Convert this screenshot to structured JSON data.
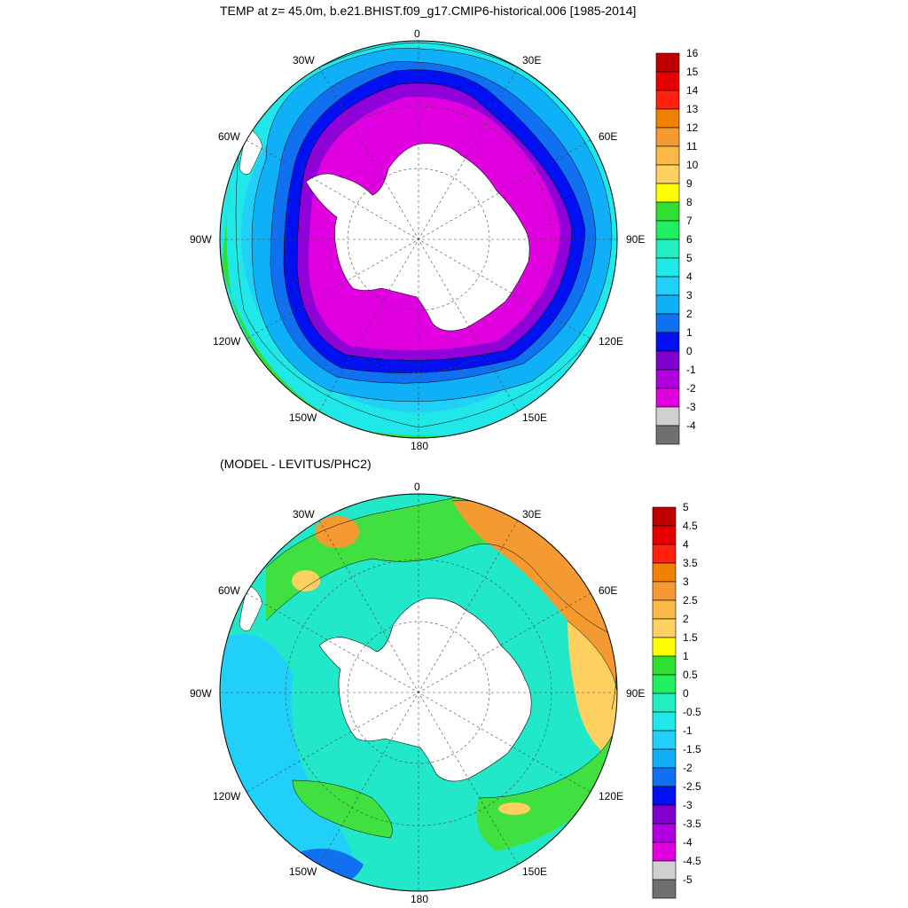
{
  "panels": [
    {
      "id": "top",
      "title": "TEMP at z=  45.0m, b.e21.BHIST.f09_g17.CMIP6-historical.006 [1985-2014]",
      "lon_labels": [
        "0",
        "30E",
        "60E",
        "90E",
        "120E",
        "150E",
        "180",
        "150W",
        "120W",
        "90W",
        "60W",
        "30W"
      ],
      "colorbar": {
        "levels": [
          "16",
          "15",
          "14",
          "13",
          "12",
          "11",
          "10",
          "9",
          "8",
          "7",
          "6",
          "5",
          "4",
          "3",
          "2",
          "1",
          "0",
          "-1",
          "-2",
          "-3",
          "-4"
        ],
        "colors": [
          "#bf0000",
          "#e60000",
          "#ff2010",
          "#f08000",
          "#f59a30",
          "#fbb848",
          "#fdd060",
          "#ffff00",
          "#30e030",
          "#20f060",
          "#20f0c0",
          "#20e8e8",
          "#20d0f8",
          "#10b0f8",
          "#1070f0",
          "#0010f0",
          "#8000d0",
          "#b000e0",
          "#e000e0",
          "#d0d0d0",
          "#707070"
        ]
      },
      "regions": {
        "outer": "#30e8e0",
        "mid": "#20c0f0",
        "inner_blue": "#1070f0",
        "dark_blue": "#0010f0",
        "purple": "#9000d8",
        "magenta": "#e000e0",
        "land": "#ffffff",
        "warm_edge": "#40e040"
      }
    },
    {
      "id": "bottom",
      "title": "(MODEL - LEVITUS/PHC2)",
      "lon_labels": [
        "0",
        "30E",
        "60E",
        "90E",
        "120E",
        "150E",
        "180",
        "150W",
        "120W",
        "90W",
        "60W",
        "30W"
      ],
      "colorbar": {
        "levels": [
          "5",
          "4.5",
          "4",
          "3.5",
          "3",
          "2.5",
          "2",
          "1.5",
          "1",
          "0.5",
          "0",
          "-0.5",
          "-1",
          "-1.5",
          "-2",
          "-2.5",
          "-3",
          "-3.5",
          "-4",
          "-4.5",
          "-5"
        ],
        "colors": [
          "#bf0000",
          "#e60000",
          "#ff2010",
          "#f08000",
          "#f59a30",
          "#fbb848",
          "#fdd060",
          "#ffff00",
          "#30e030",
          "#20f060",
          "#20f0c0",
          "#20e8e8",
          "#20d0f8",
          "#10b0f8",
          "#1070f0",
          "#0010f0",
          "#8000d0",
          "#b000e0",
          "#e000e0",
          "#d0d0d0",
          "#707070"
        ]
      },
      "regions": {
        "base": "#20e8c8",
        "cool": "#20d0f8",
        "green": "#40e040",
        "orange": "#f59a30",
        "yellow": "#fdd060",
        "blue": "#1070f0",
        "land": "#ffffff"
      }
    }
  ]
}
